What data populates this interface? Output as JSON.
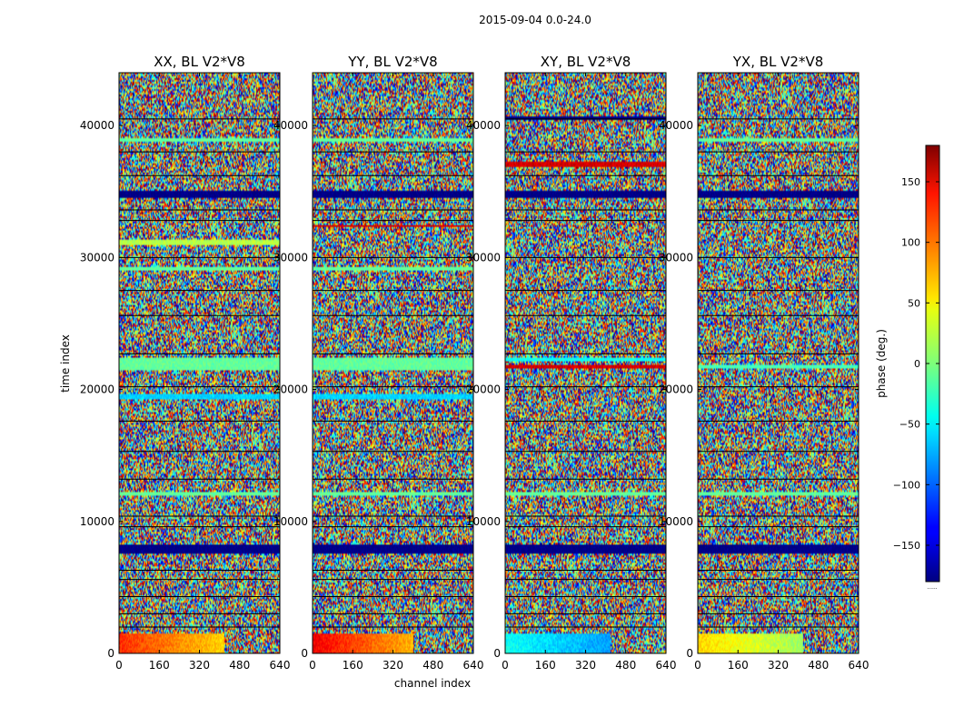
{
  "figure": {
    "suptitle": "2015-09-04 0.0-24.0",
    "xlabel": "channel index",
    "ylabel": "time index"
  },
  "chart_data": {
    "type": "heatmap",
    "colormap": "jet",
    "xlim": [
      0,
      640
    ],
    "ylim": [
      0,
      44000
    ],
    "x_ticks": [
      0,
      160,
      320,
      480,
      640
    ],
    "y_ticks": [
      0,
      10000,
      20000,
      30000,
      40000
    ],
    "x_tick_labels": [
      "0",
      "160",
      "320",
      "480",
      "640"
    ],
    "y_tick_labels": [
      "0",
      "10000",
      "20000",
      "30000",
      "40000"
    ],
    "panels": [
      {
        "title": "XX, BL V2*V8",
        "y_tick_labels": [
          "0",
          "10000",
          "20000",
          "30000",
          "40000"
        ],
        "bottom_band": {
          "y_range": [
            0,
            1500
          ],
          "left_phase": 120,
          "right_phase": 60,
          "edge_channel": 420
        },
        "bands": [
          {
            "y": [
              7600,
              8200
            ],
            "phase": -180
          },
          {
            "y": [
              34500,
              35000
            ],
            "phase": -180
          },
          {
            "y": [
              21400,
              22400
            ],
            "phase": -10
          },
          {
            "y": [
              19300,
              19700
            ],
            "phase": -60
          },
          {
            "y": [
              38800,
              39100
            ],
            "phase": -10
          },
          {
            "y": [
              31000,
              31400
            ],
            "phase": 20
          },
          {
            "y": [
              29000,
              29300
            ],
            "phase": -10
          },
          {
            "y": [
              12000,
              12300
            ],
            "phase": -10
          }
        ]
      },
      {
        "title": "YY, BL V2*V8",
        "y_tick_labels": [
          "0",
          "10000",
          "20000",
          "30000",
          "40000"
        ],
        "bottom_band": {
          "y_range": [
            0,
            1500
          ],
          "left_phase": 140,
          "right_phase": 70,
          "edge_channel": 400
        },
        "bands": [
          {
            "y": [
              7600,
              8200
            ],
            "phase": -180
          },
          {
            "y": [
              34500,
              35000
            ],
            "phase": -180
          },
          {
            "y": [
              21400,
              22400
            ],
            "phase": -10
          },
          {
            "y": [
              19300,
              19700
            ],
            "phase": -60
          },
          {
            "y": [
              38800,
              39100
            ],
            "phase": -10
          },
          {
            "y": [
              32300,
              32500
            ],
            "phase": 150
          },
          {
            "y": [
              29000,
              29300
            ],
            "phase": -10
          },
          {
            "y": [
              12000,
              12300
            ],
            "phase": -10
          }
        ]
      },
      {
        "title": "XY, BL V2*V8",
        "y_tick_labels": [
          "0",
          "10000",
          "20000",
          "30000",
          "40000"
        ],
        "bottom_band": {
          "y_range": [
            0,
            1500
          ],
          "left_phase": -40,
          "right_phase": -80,
          "edge_channel": 420
        },
        "bands": [
          {
            "y": [
              7600,
              8200
            ],
            "phase": -180
          },
          {
            "y": [
              34500,
              35000
            ],
            "phase": -180
          },
          {
            "y": [
              40400,
              40700
            ],
            "phase": -180
          },
          {
            "y": [
              21600,
              21900
            ],
            "phase": 150
          },
          {
            "y": [
              22100,
              22400
            ],
            "phase": -40
          },
          {
            "y": [
              36900,
              37200
            ],
            "phase": 150
          },
          {
            "y": [
              12000,
              12300
            ],
            "phase": -10
          }
        ]
      },
      {
        "title": "YX, BL V2*V8",
        "y_tick_labels": [
          "0",
          "10000",
          "20000",
          "30000",
          "40000"
        ],
        "bottom_band": {
          "y_range": [
            0,
            1500
          ],
          "left_phase": 60,
          "right_phase": 10,
          "edge_channel": 420
        },
        "bands": [
          {
            "y": [
              7600,
              8200
            ],
            "phase": -180
          },
          {
            "y": [
              34500,
              35000
            ],
            "phase": -180
          },
          {
            "y": [
              21600,
              21900
            ],
            "phase": -20
          },
          {
            "y": [
              38800,
              39100
            ],
            "phase": -10
          },
          {
            "y": [
              12000,
              12300
            ],
            "phase": -10
          }
        ]
      }
    ],
    "horizontal_dark_lines": [
      2000,
      3000,
      4300,
      5600,
      6300,
      9600,
      10400,
      13200,
      15300,
      17600,
      20200,
      22700,
      25600,
      27500,
      30000,
      32800,
      33600,
      36200,
      38000,
      40500
    ],
    "colorbar": {
      "label": "phase (deg.)",
      "lim": [
        -180,
        180
      ],
      "ticks": [
        -150,
        -100,
        -50,
        0,
        50,
        100,
        150
      ],
      "tick_labels": [
        "−150",
        "−100",
        "−50",
        "0",
        "50",
        "100",
        "150"
      ],
      "extra_text": "......"
    }
  }
}
